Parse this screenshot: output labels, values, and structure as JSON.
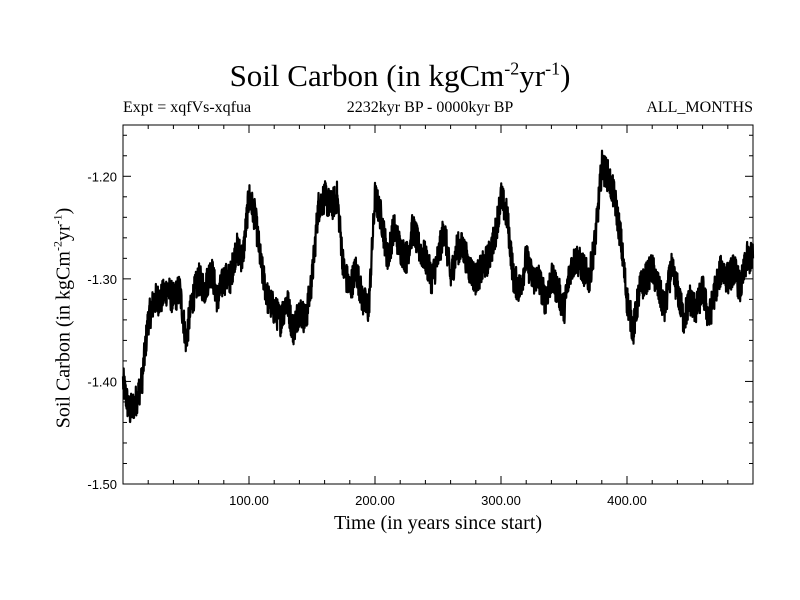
{
  "chart_data": {
    "type": "line",
    "title": {
      "main": "Soil Carbon (in kgCm",
      "sup1": "-2",
      "mid": "yr",
      "sup2": "-1",
      "end": ")"
    },
    "subtitle_left": "Expt = xqfVs-xqfua",
    "subtitle_center": "2232kyr BP - 0000kyr BP",
    "subtitle_right": "ALL_MONTHS",
    "xlabel": "Time (in years since start)",
    "ylabel": {
      "main": "Soil Carbon (in kgCm",
      "sup1": "-2",
      "mid": "yr",
      "sup2": "-1",
      "end": ")"
    },
    "xlim": [
      0,
      500
    ],
    "ylim": [
      -1.5,
      -1.15
    ],
    "xticks": [
      100,
      200,
      300,
      400
    ],
    "xtick_labels": [
      "100.00",
      "200.00",
      "300.00",
      "400.00"
    ],
    "yticks": [
      -1.5,
      -1.4,
      -1.3,
      -1.2
    ],
    "ytick_labels": [
      "-1.50",
      "-1.40",
      "-1.30",
      "-1.20"
    ],
    "series": [
      {
        "name": "Soil Carbon",
        "color": "#000000",
        "x": [
          0,
          5,
          10,
          15,
          20,
          25,
          30,
          35,
          40,
          45,
          50,
          55,
          60,
          65,
          70,
          75,
          80,
          85,
          90,
          95,
          100,
          105,
          110,
          115,
          120,
          125,
          130,
          135,
          140,
          145,
          150,
          155,
          160,
          165,
          170,
          175,
          180,
          185,
          190,
          195,
          200,
          205,
          210,
          215,
          220,
          225,
          230,
          235,
          240,
          245,
          250,
          255,
          260,
          265,
          270,
          275,
          280,
          285,
          290,
          295,
          300,
          305,
          310,
          315,
          320,
          325,
          330,
          335,
          340,
          345,
          350,
          355,
          360,
          365,
          370,
          375,
          380,
          385,
          390,
          395,
          400,
          405,
          410,
          415,
          420,
          425,
          430,
          435,
          440,
          445,
          450,
          455,
          460,
          465,
          470,
          475,
          480,
          485,
          490,
          495,
          500
        ],
        "y": [
          -1.4,
          -1.43,
          -1.42,
          -1.4,
          -1.34,
          -1.32,
          -1.32,
          -1.31,
          -1.32,
          -1.31,
          -1.36,
          -1.32,
          -1.3,
          -1.31,
          -1.29,
          -1.32,
          -1.3,
          -1.3,
          -1.27,
          -1.28,
          -1.22,
          -1.24,
          -1.29,
          -1.32,
          -1.33,
          -1.34,
          -1.32,
          -1.35,
          -1.33,
          -1.34,
          -1.3,
          -1.23,
          -1.22,
          -1.23,
          -1.22,
          -1.29,
          -1.31,
          -1.29,
          -1.32,
          -1.33,
          -1.22,
          -1.24,
          -1.28,
          -1.25,
          -1.27,
          -1.28,
          -1.25,
          -1.27,
          -1.28,
          -1.3,
          -1.28,
          -1.25,
          -1.3,
          -1.27,
          -1.27,
          -1.29,
          -1.3,
          -1.29,
          -1.28,
          -1.26,
          -1.22,
          -1.24,
          -1.3,
          -1.31,
          -1.28,
          -1.3,
          -1.3,
          -1.32,
          -1.3,
          -1.31,
          -1.33,
          -1.29,
          -1.28,
          -1.29,
          -1.3,
          -1.26,
          -1.19,
          -1.2,
          -1.22,
          -1.26,
          -1.32,
          -1.35,
          -1.31,
          -1.3,
          -1.29,
          -1.31,
          -1.33,
          -1.29,
          -1.31,
          -1.34,
          -1.32,
          -1.33,
          -1.31,
          -1.34,
          -1.31,
          -1.29,
          -1.3,
          -1.29,
          -1.31,
          -1.28,
          -1.28
        ]
      }
    ]
  }
}
